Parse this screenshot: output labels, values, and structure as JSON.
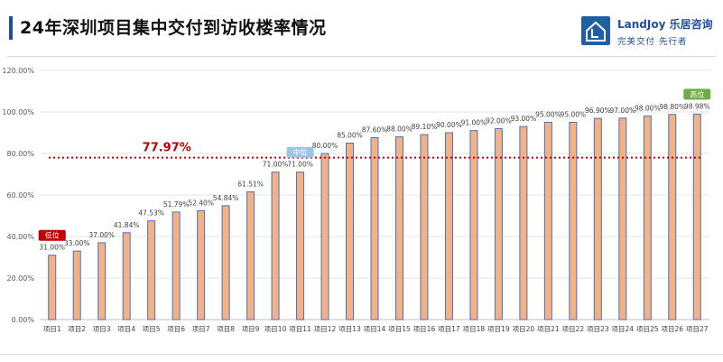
{
  "header": {
    "title": "24年深圳项目集中交付到访收楼率情况",
    "logo_name": "LandJoy 乐居咨询",
    "logo_slogan": "完美交付 先行者"
  },
  "colors": {
    "bar_fill": "#F4B183",
    "bar_stroke": "#4472C4",
    "avg_line": "#C00000",
    "low_badge": "#C00000",
    "mid_badge": "#9DC3E6",
    "high_badge": "#70AD47",
    "accent": "#1F4E9C"
  },
  "chart_data": {
    "type": "bar",
    "title": "24年深圳项目集中交付到访收楼率情况",
    "categories": [
      "项目1",
      "项目2",
      "项目3",
      "项目4",
      "项目5",
      "项目6",
      "项目7",
      "项目8",
      "项目9",
      "项目10",
      "项目11",
      "项目12",
      "项目13",
      "项目14",
      "项目15",
      "项目16",
      "项目17",
      "项目18",
      "项目19",
      "项目20",
      "项目21",
      "项目22",
      "项目23",
      "项目24",
      "项目25",
      "项目26",
      "项目27"
    ],
    "values": [
      31.0,
      33.0,
      37.0,
      41.84,
      47.53,
      51.79,
      52.4,
      54.84,
      61.51,
      71.0,
      71.0,
      80.0,
      85.0,
      87.6,
      88.0,
      89.1,
      90.0,
      91.0,
      92.0,
      93.0,
      95.0,
      95.0,
      96.9,
      97.0,
      98.0,
      98.8,
      98.98
    ],
    "value_labels": [
      "31.00%",
      "33.00%",
      "37.00%",
      "41.84%",
      "47.53%",
      "51.79%",
      "52.40%",
      "54.84%",
      "61.51%",
      "71.00%",
      "71.00%",
      "80.00%",
      "85.00%",
      "87.60%",
      "88.00%",
      "89.10%",
      "90.00%",
      "91.00%",
      "92.00%",
      "93.00%",
      "95.00%",
      "95.00%",
      "96.90%",
      "97.00%",
      "98.00%",
      "98.80%",
      "98.98%"
    ],
    "ylim": [
      0,
      120
    ],
    "yticks": [
      "0.00%",
      "20.00%",
      "40.00%",
      "60.00%",
      "80.00%",
      "100.00%",
      "120.00%"
    ],
    "ytick_values": [
      0,
      20,
      40,
      60,
      80,
      100,
      120
    ],
    "grid": true,
    "average": {
      "value": 77.97,
      "label": "77.97%"
    },
    "badges": [
      {
        "label": "低位",
        "category_index": 0,
        "value": 31.0,
        "color": "#C00000"
      },
      {
        "label": "中位",
        "category_index": 10,
        "value": 71.0,
        "color": "#9DC3E6"
      },
      {
        "label": "高位",
        "category_index": 26,
        "value": 98.98,
        "color": "#70AD47"
      }
    ]
  }
}
